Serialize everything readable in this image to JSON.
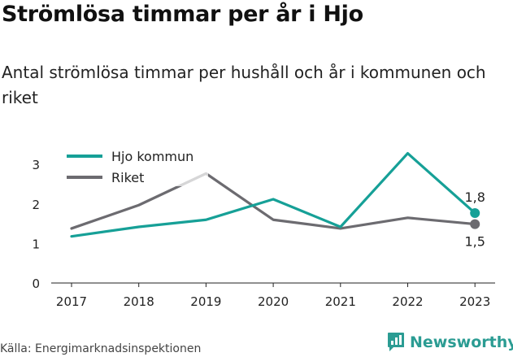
{
  "title": "Strömlösa timmar per år i Hjo",
  "subtitle": "Antal strömlösa timmar per hushåll och år i kommunen och riket",
  "source": "Källa: Energimarknadsinspektionen",
  "brand": {
    "name": "Newsworthy",
    "icon": "newsworthy-chart-icon",
    "color": "#2b9c93"
  },
  "chart_data": {
    "type": "line",
    "x": [
      "2017",
      "2018",
      "2019",
      "2020",
      "2021",
      "2022",
      "2023"
    ],
    "ylim": [
      0,
      3.6
    ],
    "yticks": [
      "0",
      "1",
      "2",
      "3"
    ],
    "grid": false,
    "legend_position": "top-left",
    "series": [
      {
        "name": "Hjo kommun",
        "color": "#16a097",
        "values": [
          1.18,
          1.42,
          1.6,
          2.12,
          1.42,
          3.28,
          1.77
        ],
        "end_label": "1,8"
      },
      {
        "name": "Riket",
        "color": "#6c6b70",
        "values": [
          1.38,
          1.97,
          2.77,
          1.6,
          1.38,
          1.65,
          1.49
        ],
        "end_label": "1,5"
      }
    ]
  }
}
